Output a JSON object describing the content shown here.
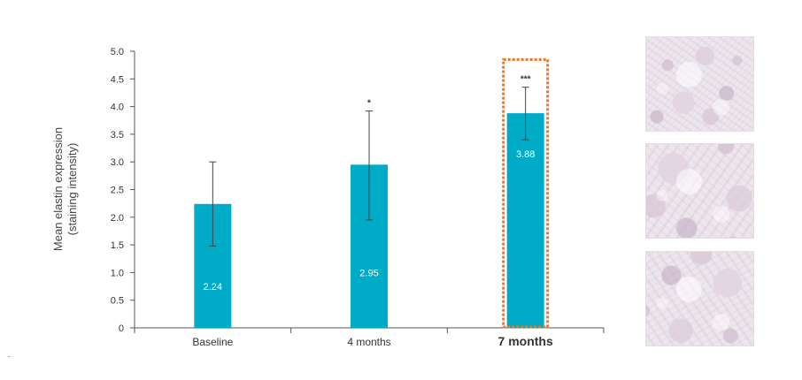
{
  "chart_data": {
    "type": "bar",
    "title": "",
    "xlabel": "",
    "ylabel_lines": [
      "Mean elastin expression",
      "(staining intensity)"
    ],
    "ylim": [
      0,
      5.0
    ],
    "yticks": [
      "0",
      "0.5",
      "1.0",
      "1.5",
      "2.0",
      "2.5",
      "3.0",
      "3.5",
      "4.0",
      "4.5",
      "5.0"
    ],
    "categories": [
      "Baseline",
      "4 months",
      "7 months"
    ],
    "values": [
      2.24,
      2.95,
      3.88
    ],
    "value_labels": [
      "2.24",
      "2.95",
      "3.88"
    ],
    "error_bars": [
      {
        "low": 1.48,
        "high": 3.0
      },
      {
        "low": 1.95,
        "high": 3.92
      },
      {
        "low": 3.4,
        "high": 4.35
      }
    ],
    "significance": [
      "",
      "*",
      "***"
    ],
    "highlight_index": 2,
    "grid": false,
    "legend": "none",
    "colors": {
      "bar": "#00abc8",
      "highlight_label": "#18aac6",
      "highlight_box": "#f07324",
      "axis": "#555555",
      "error_bar": "#444444"
    }
  },
  "images": [
    {
      "name": "tissue-section-baseline"
    },
    {
      "name": "tissue-section-4-months"
    },
    {
      "name": "tissue-section-7-months"
    }
  ]
}
